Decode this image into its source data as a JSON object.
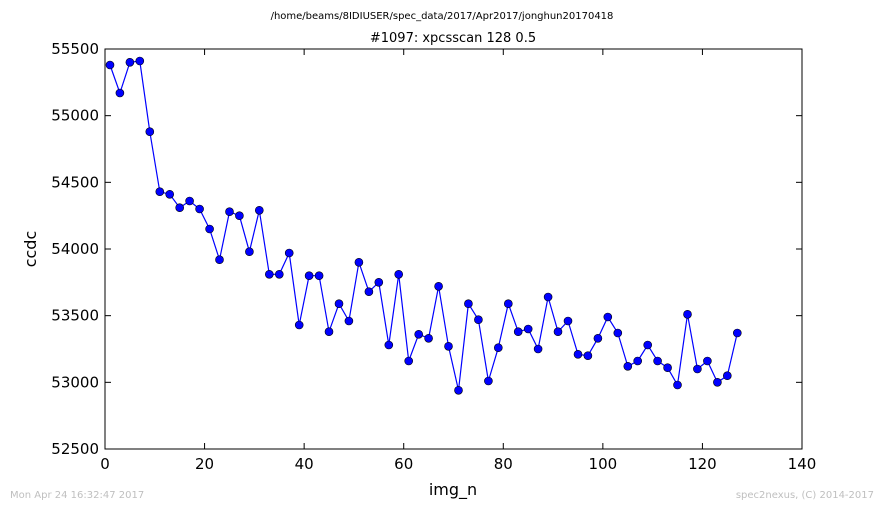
{
  "chart_data": {
    "type": "line",
    "suptitle": "/home/beams/8IDIUSER/spec_data/2017/Apr2017/jonghun20170418",
    "title": "#1097: xpcsscan 128 0.5",
    "xlabel": "img_n",
    "ylabel": "ccdc",
    "xlim": [
      0,
      140
    ],
    "ylim": [
      52500,
      55500
    ],
    "xticks": [
      0,
      20,
      40,
      60,
      80,
      100,
      120,
      140
    ],
    "yticks": [
      52500,
      53000,
      53500,
      54000,
      54500,
      55000,
      55500
    ],
    "grid": false,
    "marker": "circle",
    "color": "#0000ff",
    "x": [
      1,
      3,
      5,
      7,
      9,
      11,
      13,
      15,
      17,
      19,
      21,
      23,
      25,
      27,
      29,
      31,
      33,
      35,
      37,
      39,
      41,
      43,
      45,
      47,
      49,
      51,
      53,
      55,
      57,
      59,
      61,
      63,
      65,
      67,
      69,
      71,
      73,
      75,
      77,
      79,
      81,
      83,
      85,
      87,
      89,
      91,
      93,
      95,
      97,
      99,
      101,
      103,
      105,
      107,
      109,
      111,
      113,
      115,
      117,
      119,
      121,
      123,
      125,
      127
    ],
    "y": [
      55380,
      55170,
      55400,
      55410,
      54880,
      54430,
      54410,
      54310,
      54360,
      54300,
      54150,
      53920,
      54280,
      54250,
      53980,
      54290,
      53810,
      53810,
      53970,
      53430,
      53800,
      53800,
      53380,
      53590,
      53460,
      53900,
      53680,
      53750,
      53280,
      53810,
      53160,
      53360,
      53330,
      53720,
      53270,
      52940,
      53590,
      53470,
      53010,
      53260,
      53590,
      53380,
      53400,
      53250,
      53640,
      53380,
      53460,
      53210,
      53200,
      53330,
      53490,
      53370,
      53120,
      53160,
      53280,
      53160,
      53110,
      52980,
      53510,
      53100,
      53160,
      53000,
      53050,
      53370
    ]
  },
  "footer": {
    "left": "Mon Apr 24 16:32:47 2017",
    "right": "spec2nexus, (C) 2014-2017"
  }
}
